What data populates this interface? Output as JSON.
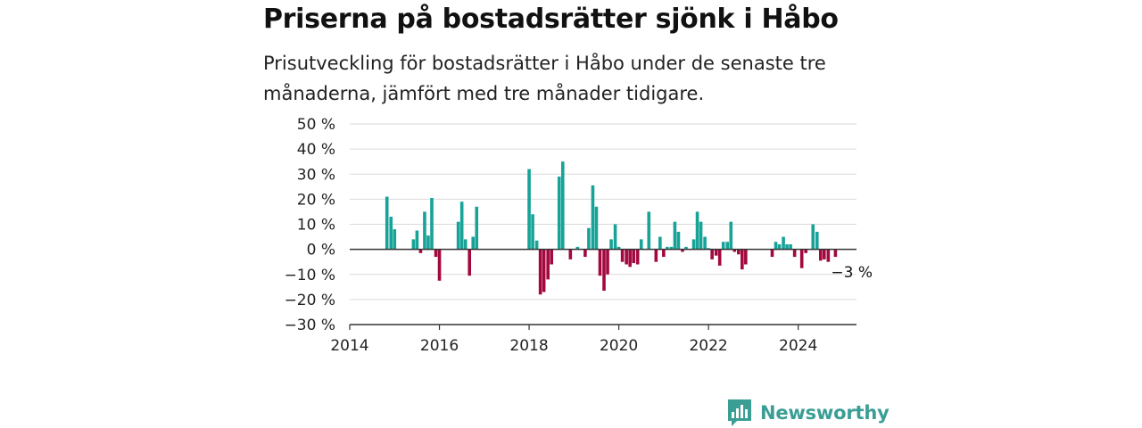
{
  "title": "Priserna på bostadsrätter sjönk i Håbo",
  "subtitle": "Prisutveckling för bostadsrätter i Håbo under de senaste tre månaderna, jämfört med tre månader tidigare.",
  "brand": {
    "name": "Newsworthy",
    "icon": "newsworthy-logo-icon",
    "color": "#3a9e95"
  },
  "colors": {
    "positive": "#17a398",
    "negative": "#a3093f",
    "grid": "#d9d9d9",
    "axis": "#333333"
  },
  "chart_data": {
    "type": "bar",
    "ylim": [
      -30,
      50
    ],
    "xlim": [
      2014,
      2025.3
    ],
    "y_ticks": [
      50,
      40,
      30,
      20,
      10,
      0,
      -10,
      -20,
      -30
    ],
    "y_tick_labels": [
      "50 %",
      "40 %",
      "30 %",
      "20 %",
      "10 %",
      "0 %",
      "−10 %",
      "−20 %",
      "−30 %"
    ],
    "x_ticks": [
      2014,
      2016,
      2018,
      2020,
      2022,
      2024
    ],
    "x_tick_labels": [
      "2014",
      "2016",
      "2018",
      "2020",
      "2022",
      "2024"
    ],
    "grid": true,
    "annotation": {
      "text": "−3 %",
      "x": 2024.83,
      "y": -3
    },
    "x": [
      2014.83,
      2014.92,
      2015.0,
      2015.42,
      2015.5,
      2015.58,
      2015.67,
      2015.75,
      2015.83,
      2015.92,
      2016.0,
      2016.42,
      2016.5,
      2016.58,
      2016.67,
      2016.75,
      2016.83,
      2018.0,
      2018.08,
      2018.17,
      2018.25,
      2018.33,
      2018.42,
      2018.5,
      2018.67,
      2018.75,
      2018.92,
      2019.08,
      2019.25,
      2019.33,
      2019.42,
      2019.5,
      2019.58,
      2019.67,
      2019.75,
      2019.83,
      2019.92,
      2020.0,
      2020.08,
      2020.17,
      2020.25,
      2020.33,
      2020.42,
      2020.5,
      2020.67,
      2020.83,
      2020.92,
      2021.0,
      2021.08,
      2021.17,
      2021.25,
      2021.33,
      2021.42,
      2021.5,
      2021.67,
      2021.75,
      2021.83,
      2021.92,
      2022.0,
      2022.08,
      2022.17,
      2022.25,
      2022.33,
      2022.42,
      2022.5,
      2022.58,
      2022.67,
      2022.75,
      2022.83,
      2023.42,
      2023.5,
      2023.58,
      2023.67,
      2023.75,
      2023.83,
      2023.92,
      2024.08,
      2024.17,
      2024.33,
      2024.42,
      2024.5,
      2024.58,
      2024.67,
      2024.83
    ],
    "values": [
      21,
      13,
      8,
      4,
      7.5,
      -1.5,
      15,
      5.5,
      20.5,
      -3,
      -12.5,
      11,
      19,
      4,
      -10.5,
      5,
      17,
      32,
      14,
      3.5,
      -18,
      -17,
      -12,
      -6,
      29,
      35,
      -4,
      1,
      -3,
      8.5,
      25.5,
      17,
      -10.5,
      -16.5,
      -10,
      4,
      10,
      1,
      -5,
      -6,
      -7,
      -5.5,
      -6,
      4,
      15,
      -5,
      5,
      -3,
      1,
      1,
      11,
      7,
      -1,
      1,
      4,
      15,
      11,
      5,
      0.5,
      -4,
      -2.5,
      -6.5,
      3,
      3,
      11,
      -1,
      -2,
      -8,
      -6,
      -3,
      3,
      2,
      5,
      2,
      2,
      -3,
      -7.5,
      -1.5,
      10,
      7,
      -4.5,
      -4,
      -5,
      -3
    ]
  }
}
